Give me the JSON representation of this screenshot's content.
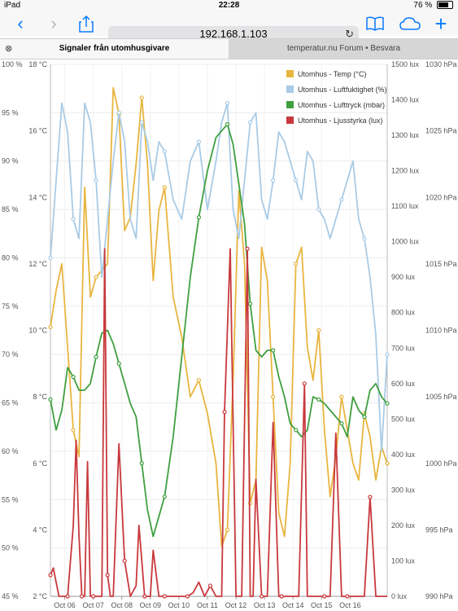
{
  "status": {
    "device": "iPad",
    "time": "22:28",
    "battery": "76 %",
    "battery_level": 0.76
  },
  "browser": {
    "url": "192.168.1.103"
  },
  "tabs": [
    {
      "label": "Signaler från utomhusgivare",
      "active": true
    },
    {
      "label": "temperatur.nu Forum • Besvara",
      "active": false
    }
  ],
  "chart_data": {
    "type": "line",
    "x_ticks": [
      "Oct 06",
      "Oct 07",
      "Oct 08",
      "Oct 09",
      "Oct 10",
      "Oct 11",
      "Oct 12",
      "Oct 13",
      "Oct 14",
      "Oct 15",
      "Oct 16"
    ],
    "x_range": [
      0,
      11.8
    ],
    "axes": {
      "humidity": {
        "unit": "%",
        "range": [
          45,
          100
        ],
        "ticks": [
          "45 %",
          "50 %",
          "55 %",
          "60 %",
          "65 %",
          "70 %",
          "75 %",
          "80 %",
          "85 %",
          "90 %",
          "95 %",
          "100 %"
        ]
      },
      "temp": {
        "unit": "°C",
        "range": [
          2,
          18
        ],
        "ticks": [
          "2 °C",
          "4 °C",
          "6 °C",
          "8 °C",
          "10 °C",
          "12 °C",
          "14 °C",
          "16 °C",
          "18 °C"
        ]
      },
      "lux": {
        "unit": "lux",
        "range": [
          0,
          1500
        ],
        "ticks": [
          "0 lux",
          "100 lux",
          "200 lux",
          "300 lux",
          "400 lux",
          "500 lux",
          "600 lux",
          "700 lux",
          "800 lux",
          "900 lux",
          "1000 lux",
          "1100 lux",
          "1200 lux",
          "1300 lux",
          "1400 lux",
          "1500 lux"
        ]
      },
      "pressure": {
        "unit": "hPa",
        "range": [
          990,
          1030
        ],
        "ticks": [
          "990 hPa",
          "995 hPa",
          "1000 hPa",
          "1005 hPa",
          "1010 hPa",
          "1015 hPa",
          "1020 hPa",
          "1025 hPa",
          "1030 hPa"
        ]
      }
    },
    "legend_position": "top-right",
    "series": [
      {
        "name": "Utomhus - Temp (°C)",
        "color": "#e8b53f",
        "axis": "temp",
        "x": [
          0,
          0.2,
          0.4,
          0.6,
          0.8,
          1.0,
          1.2,
          1.4,
          1.6,
          1.8,
          2.0,
          2.2,
          2.4,
          2.6,
          2.8,
          3.0,
          3.2,
          3.4,
          3.6,
          3.8,
          4.0,
          4.3,
          4.6,
          4.9,
          5.2,
          5.5,
          5.8,
          6.0,
          6.2,
          6.4,
          6.6,
          6.8,
          7.0,
          7.2,
          7.4,
          7.6,
          7.8,
          8.0,
          8.2,
          8.4,
          8.6,
          8.8,
          9.0,
          9.2,
          9.4,
          9.6,
          9.8,
          10.0,
          10.2,
          10.4,
          10.6,
          10.8,
          11.0,
          11.2,
          11.4,
          11.6,
          11.8
        ],
        "y": [
          10.1,
          11.2,
          12.0,
          9.5,
          7.0,
          6.2,
          14.3,
          11.0,
          11.6,
          11.8,
          12.0,
          17.3,
          16.5,
          13.0,
          13.4,
          15.0,
          17.0,
          15.0,
          11.5,
          13.6,
          14.3,
          11.0,
          9.8,
          8.0,
          8.5,
          7.5,
          6.0,
          3.5,
          4.0,
          8.5,
          14.2,
          12.0,
          4.8,
          5.5,
          12.5,
          11.5,
          8.0,
          4.5,
          3.8,
          6.0,
          12.0,
          12.5,
          9.5,
          8.5,
          10.0,
          7.0,
          5.0,
          6.2,
          8.0,
          7.0,
          6.0,
          5.5,
          7.5,
          6.8,
          5.5,
          6.5,
          6.0
        ]
      },
      {
        "name": "Utomhus - Luftfuktighet (%)",
        "color": "#a9cbe6",
        "axis": "humidity",
        "x": [
          0,
          0.2,
          0.4,
          0.6,
          0.8,
          1.0,
          1.2,
          1.4,
          1.6,
          1.8,
          2.0,
          2.2,
          2.4,
          2.6,
          2.8,
          3.0,
          3.2,
          3.4,
          3.6,
          3.8,
          4.0,
          4.3,
          4.6,
          4.9,
          5.2,
          5.5,
          5.8,
          6.0,
          6.2,
          6.4,
          6.6,
          6.8,
          7.0,
          7.2,
          7.4,
          7.6,
          7.8,
          8.0,
          8.2,
          8.4,
          8.6,
          8.8,
          9.0,
          9.2,
          9.4,
          9.6,
          9.8,
          10.0,
          10.2,
          10.4,
          10.6,
          10.8,
          11.0,
          11.2,
          11.4,
          11.6,
          11.8
        ],
        "y": [
          80,
          88,
          96,
          93,
          84,
          82,
          96,
          94,
          88,
          78,
          84,
          90,
          95,
          92,
          84,
          82,
          94,
          92,
          88,
          92,
          91,
          86,
          84,
          90,
          92,
          85,
          90,
          94,
          96,
          85,
          82,
          88,
          94,
          95,
          86,
          84,
          88,
          93,
          92,
          90,
          88,
          86,
          91,
          90,
          85,
          84,
          82,
          84,
          86,
          88,
          90,
          84,
          82,
          78,
          72,
          60,
          70
        ]
      },
      {
        "name": "Utomhus - Lufttryck (mbar)",
        "color": "#3f9f3f",
        "axis": "pressure",
        "x": [
          0,
          0.2,
          0.4,
          0.6,
          0.8,
          1.0,
          1.2,
          1.4,
          1.6,
          1.8,
          2.0,
          2.2,
          2.4,
          2.6,
          2.8,
          3.0,
          3.2,
          3.4,
          3.6,
          3.8,
          4.0,
          4.3,
          4.6,
          4.9,
          5.2,
          5.5,
          5.8,
          6.0,
          6.2,
          6.4,
          6.6,
          6.8,
          7.0,
          7.2,
          7.4,
          7.6,
          7.8,
          8.0,
          8.2,
          8.4,
          8.6,
          8.8,
          9.0,
          9.2,
          9.4,
          9.6,
          9.8,
          10.0,
          10.2,
          10.4,
          10.6,
          10.8,
          11.0,
          11.2,
          11.4,
          11.6,
          11.8
        ],
        "y": [
          1004.8,
          1002.5,
          1004,
          1007.2,
          1006.5,
          1005.5,
          1005.5,
          1006,
          1008,
          1009.8,
          1010.0,
          1009.0,
          1007.5,
          1006.0,
          1004.5,
          1003.5,
          1000.0,
          996.5,
          994.5,
          996.0,
          997.5,
          1002.0,
          1008.0,
          1014.0,
          1018.5,
          1022.0,
          1024.5,
          1025.0,
          1025.5,
          1024.0,
          1021.0,
          1018.0,
          1012.0,
          1008.5,
          1008.0,
          1008.5,
          1008.5,
          1006.5,
          1005.0,
          1003.0,
          1002.5,
          1002.0,
          1002.5,
          1005.0,
          1004.8,
          1004.5,
          1004.0,
          1003.5,
          1003.0,
          1002.0,
          1005.0,
          1004.0,
          1003.5,
          1005.5,
          1006.0,
          1005.0,
          1004.5
        ]
      },
      {
        "name": "Utomhus - Ljusstyrka (lux)",
        "color": "#c8383c",
        "axis": "lux",
        "x": [
          0,
          0.1,
          0.3,
          0.5,
          0.6,
          0.8,
          0.9,
          1.0,
          1.1,
          1.2,
          1.3,
          1.4,
          1.5,
          1.6,
          1.8,
          1.9,
          2.0,
          2.1,
          2.2,
          2.4,
          2.6,
          2.8,
          3.0,
          3.1,
          3.3,
          3.5,
          3.6,
          3.8,
          4.0,
          4.2,
          4.4,
          4.6,
          4.8,
          5.0,
          5.2,
          5.4,
          5.6,
          5.8,
          5.9,
          6.0,
          6.1,
          6.3,
          6.5,
          6.7,
          6.9,
          7.0,
          7.1,
          7.2,
          7.4,
          7.6,
          7.8,
          8.0,
          8.1,
          8.3,
          8.5,
          8.7,
          8.9,
          9.0,
          9.2,
          9.4,
          9.6,
          9.8,
          10.0,
          10.2,
          10.4,
          10.6,
          10.8,
          11.0,
          11.2,
          11.4,
          11.6,
          11.8
        ],
        "y": [
          60,
          80,
          0,
          0,
          0,
          200,
          440,
          170,
          0,
          0,
          380,
          0,
          0,
          0,
          0,
          980,
          60,
          0,
          0,
          430,
          100,
          0,
          30,
          200,
          0,
          0,
          130,
          0,
          0,
          0,
          0,
          0,
          0,
          10,
          40,
          0,
          30,
          0,
          0,
          0,
          520,
          980,
          0,
          0,
          980,
          0,
          0,
          330,
          0,
          0,
          490,
          0,
          0,
          0,
          0,
          0,
          600,
          0,
          0,
          0,
          0,
          0,
          460,
          0,
          0,
          0,
          0,
          0,
          280,
          0,
          0,
          0
        ]
      }
    ]
  }
}
